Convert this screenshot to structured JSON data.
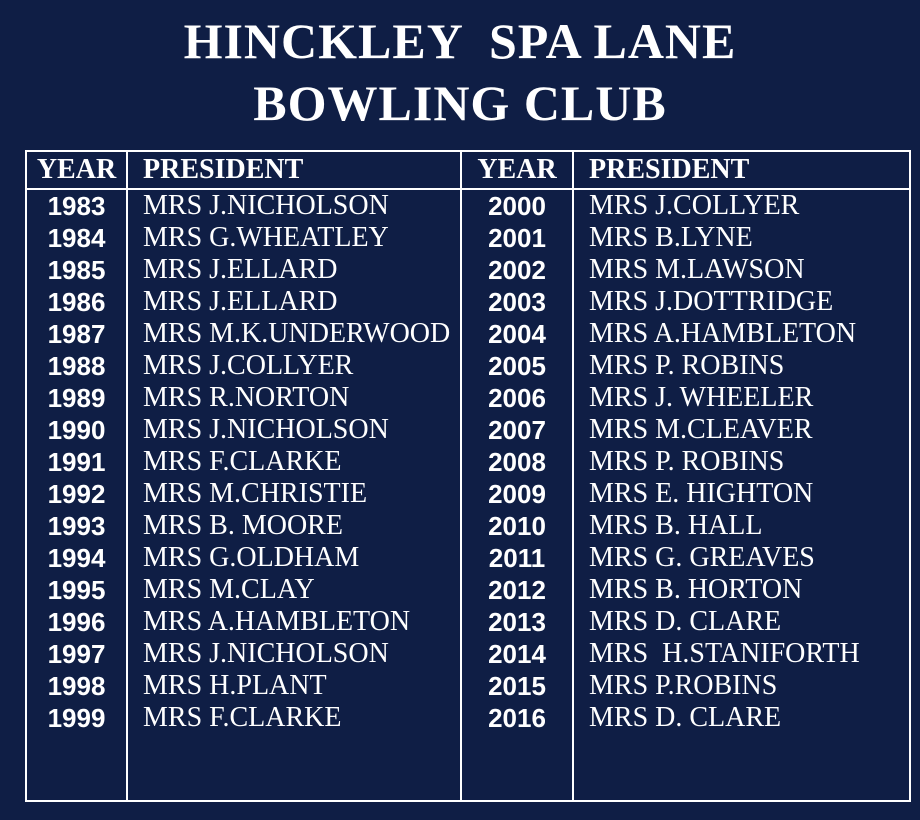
{
  "colors": {
    "background": "#0f1e45",
    "line": "#ffffff",
    "text": "#ffffff"
  },
  "title": {
    "line1": "HINCKLEY  SPA LANE",
    "line2": "BOWLING CLUB"
  },
  "table": {
    "headers": [
      "YEAR",
      "PRESIDENT",
      "YEAR",
      "PRESIDENT"
    ],
    "rows": [
      {
        "year_left": "1983",
        "president_left": "MRS J.NICHOLSON",
        "year_right": "2000",
        "president_right": "MRS J.COLLYER"
      },
      {
        "year_left": "1984",
        "president_left": "MRS G.WHEATLEY",
        "year_right": "2001",
        "president_right": "MRS B.LYNE"
      },
      {
        "year_left": "1985",
        "president_left": "MRS J.ELLARD",
        "year_right": "2002",
        "president_right": "MRS M.LAWSON"
      },
      {
        "year_left": "1986",
        "president_left": "MRS J.ELLARD",
        "year_right": "2003",
        "president_right": "MRS J.DOTTRIDGE"
      },
      {
        "year_left": "1987",
        "president_left": "MRS M.K.UNDERWOOD",
        "year_right": "2004",
        "president_right": "MRS A.HAMBLETON"
      },
      {
        "year_left": "1988",
        "president_left": "MRS J.COLLYER",
        "year_right": "2005",
        "president_right": "MRS P. ROBINS"
      },
      {
        "year_left": "1989",
        "president_left": "MRS R.NORTON",
        "year_right": "2006",
        "president_right": "MRS J. WHEELER"
      },
      {
        "year_left": "1990",
        "president_left": "MRS J.NICHOLSON",
        "year_right": "2007",
        "president_right": "MRS M.CLEAVER"
      },
      {
        "year_left": "1991",
        "president_left": "MRS F.CLARKE",
        "year_right": "2008",
        "president_right": "MRS P. ROBINS"
      },
      {
        "year_left": "1992",
        "president_left": "MRS M.CHRISTIE",
        "year_right": "2009",
        "president_right": "MRS E. HIGHTON"
      },
      {
        "year_left": "1993",
        "president_left": "MRS B. MOORE",
        "year_right": "2010",
        "president_right": "MRS B. HALL"
      },
      {
        "year_left": "1994",
        "president_left": "MRS G.OLDHAM",
        "year_right": "2011",
        "president_right": "MRS G. GREAVES"
      },
      {
        "year_left": "1995",
        "president_left": "MRS M.CLAY",
        "year_right": "2012",
        "president_right": "MRS B. HORTON"
      },
      {
        "year_left": "1996",
        "president_left": "MRS A.HAMBLETON",
        "year_right": "2013",
        "president_right": "MRS D. CLARE"
      },
      {
        "year_left": "1997",
        "president_left": "MRS J.NICHOLSON",
        "year_right": "2014",
        "president_right": "MRS  H.STANIFORTH"
      },
      {
        "year_left": "1998",
        "president_left": "MRS H.PLANT",
        "year_right": "2015",
        "president_right": "MRS P.ROBINS"
      },
      {
        "year_left": "1999",
        "president_left": "MRS F.CLARKE",
        "year_right": "2016",
        "president_right": "MRS D. CLARE"
      }
    ]
  }
}
